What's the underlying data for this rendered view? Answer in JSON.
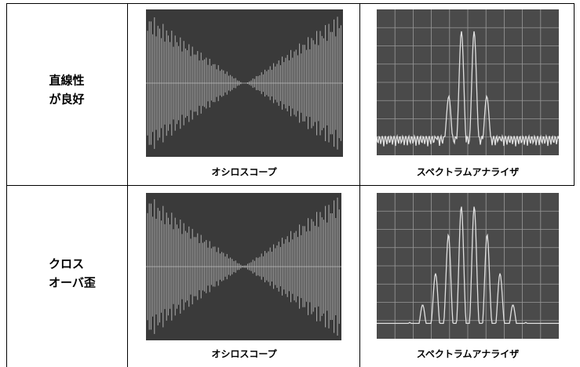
{
  "table": {
    "rows": [
      {
        "label": [
          "直線性",
          "が良好"
        ],
        "captions": [
          "オシロスコープ",
          "スペクトラムアナライザ"
        ]
      },
      {
        "label": [
          "クロス",
          "オーバ歪"
        ],
        "captions": [
          "オシロスコープ",
          "スペクトラムアナライザ"
        ]
      }
    ]
  }
}
